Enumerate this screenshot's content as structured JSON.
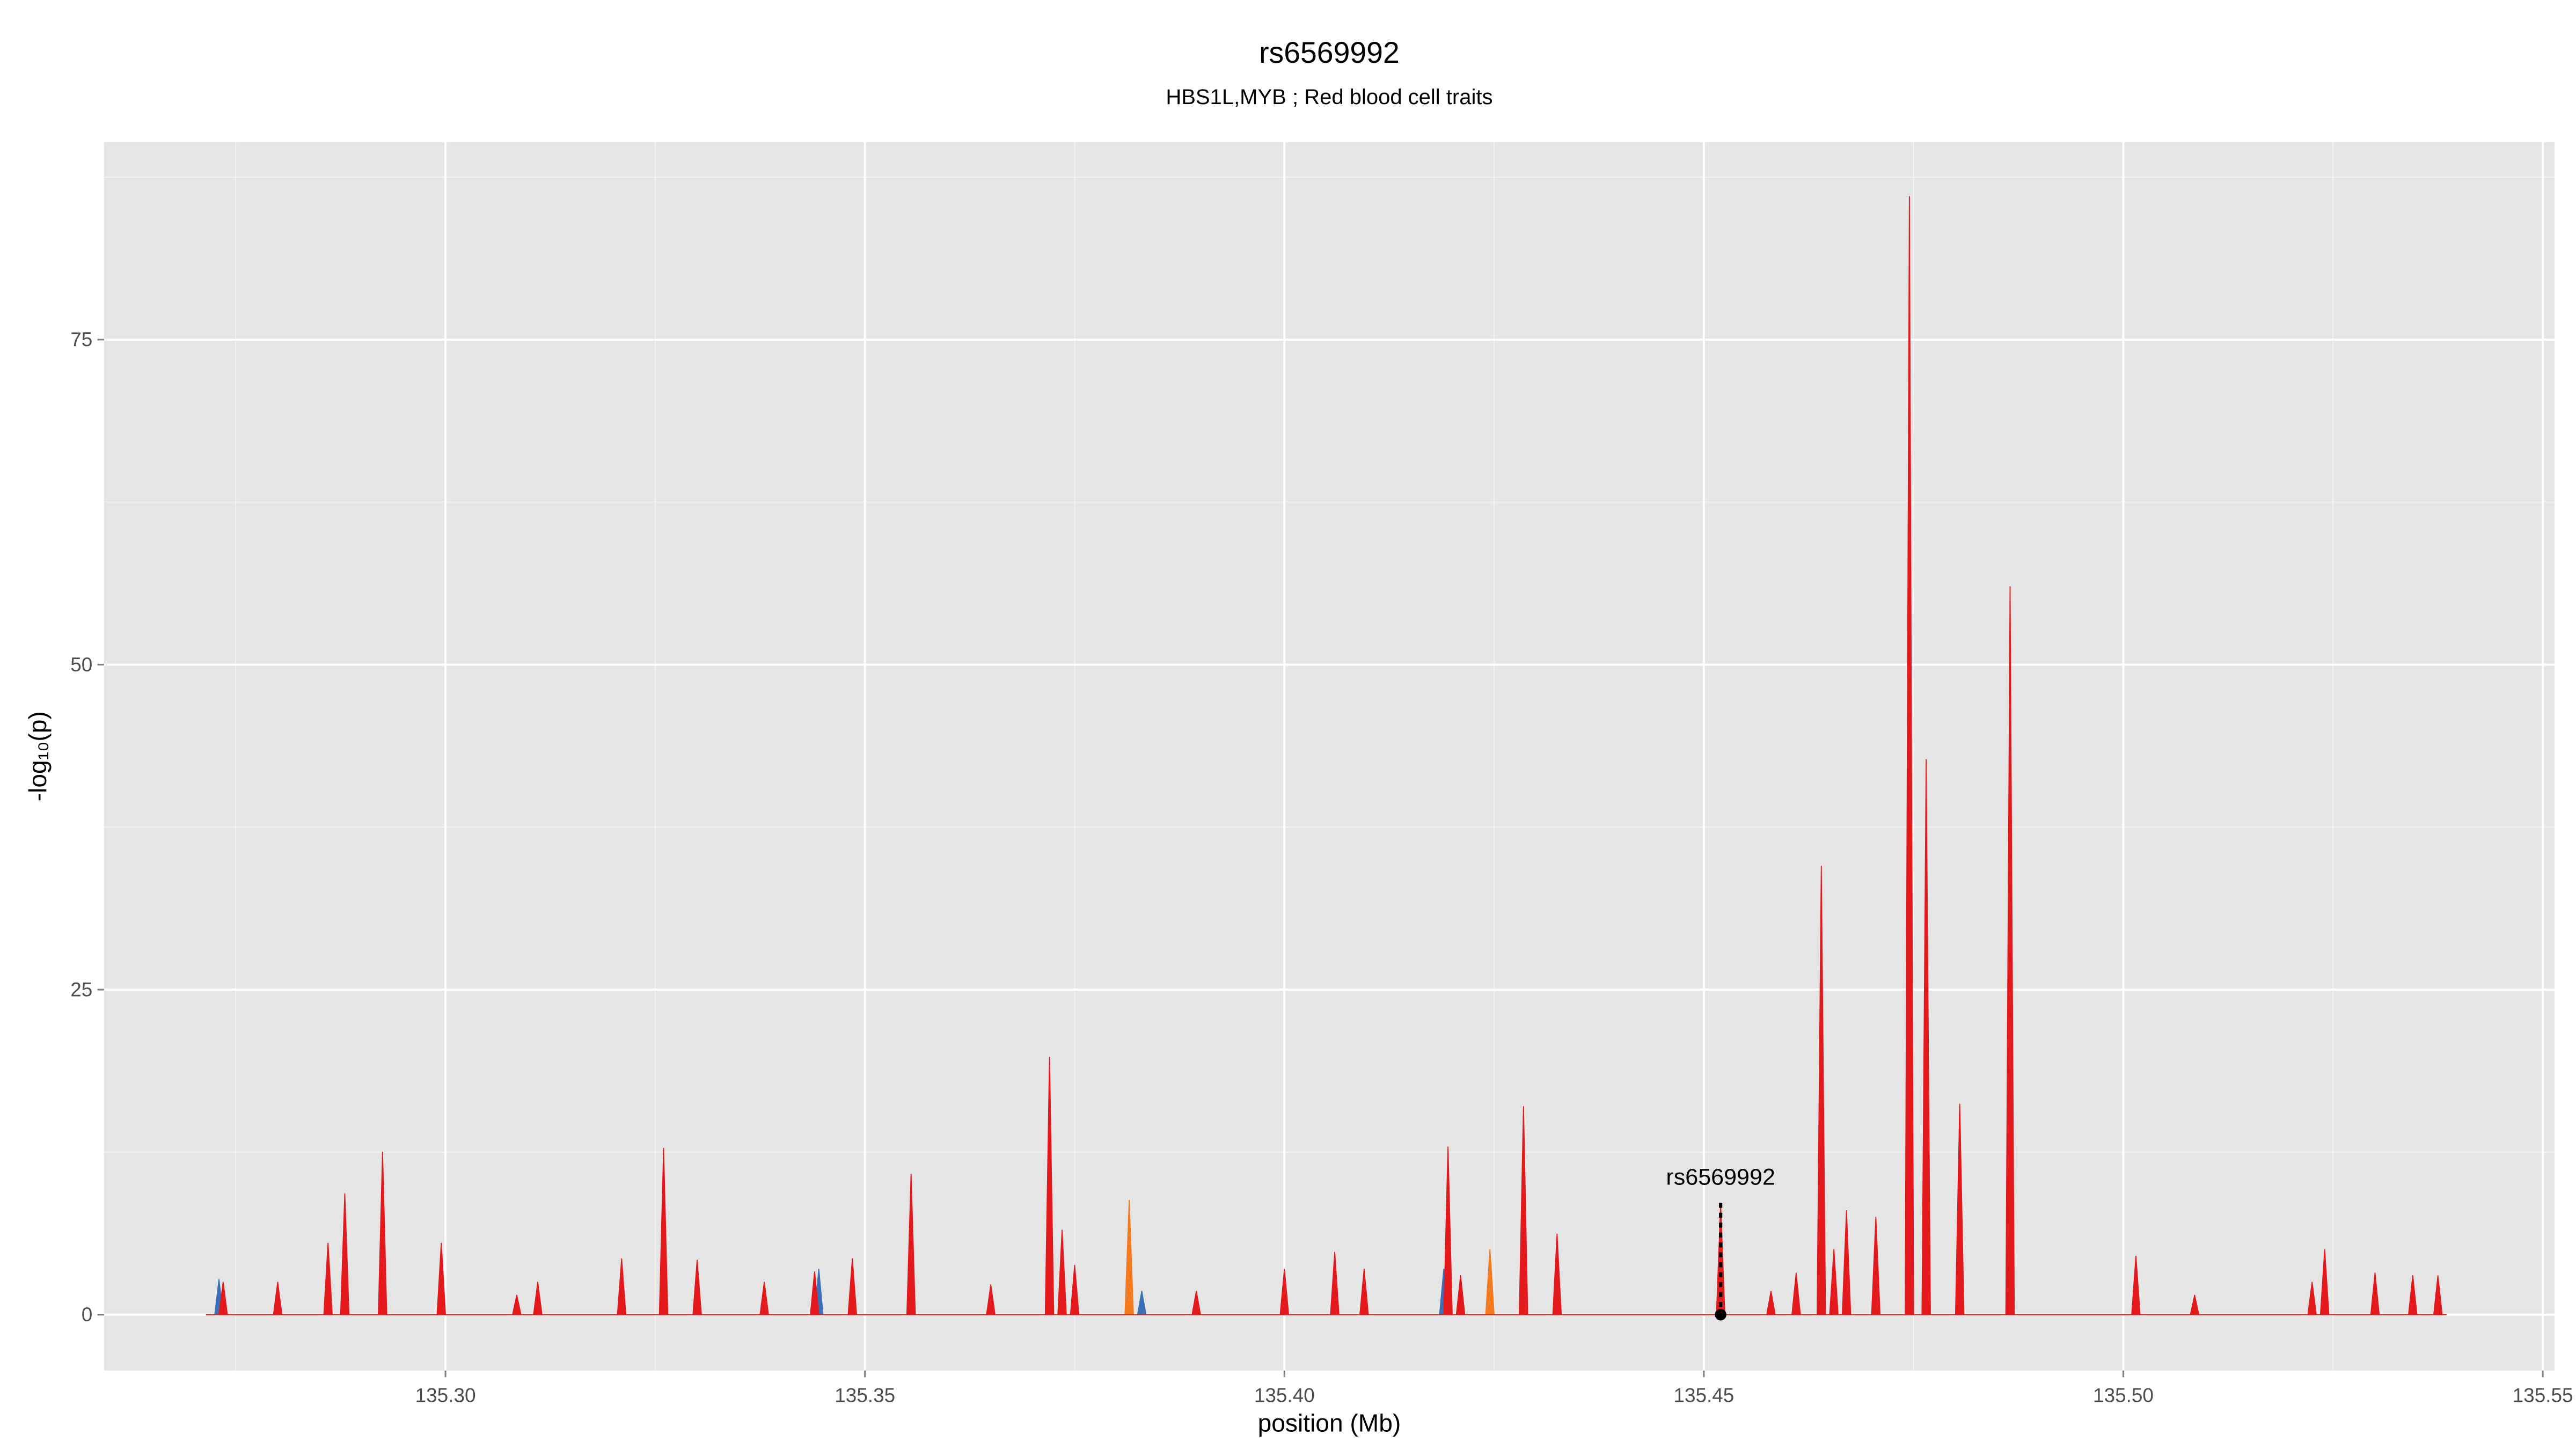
{
  "chart_data": {
    "type": "area",
    "title": "rs6569992",
    "subtitle": "HBS1L,MYB ; Red blood cell traits",
    "xlabel": "position (Mb)",
    "ylabel": "-log₁₀(p)",
    "xlim": [
      135.2593,
      135.5514
    ],
    "ylim": [
      -4.3,
      90.2
    ],
    "xticks": [
      {
        "value": 135.3,
        "label": "135.30"
      },
      135.35,
      {
        "value": 135.4,
        "label": "135.40"
      },
      135.45,
      {
        "value": 135.5,
        "label": "135.50"
      },
      135.55
    ],
    "yticks": [
      0,
      25,
      50,
      75
    ],
    "grid": true,
    "series": [
      {
        "color": "#3b6fb6",
        "x": [
          135.2715,
          135.2725,
          135.273,
          135.2735,
          135.344,
          135.3445,
          135.345,
          135.3825,
          135.383,
          135.3835,
          135.4185,
          135.419,
          135.4195,
          135.5385
        ],
        "values": [
          0,
          0,
          2.7,
          0,
          0,
          3.5,
          0,
          0,
          1.8,
          0,
          0,
          3.5,
          0,
          0
        ]
      },
      {
        "color": "#f47a1f",
        "x": [
          135.2715,
          135.381,
          135.3815,
          135.382,
          135.424,
          135.4245,
          135.425,
          135.486,
          135.4865,
          135.487,
          135.5385
        ],
        "values": [
          0,
          0,
          8.8,
          0,
          0,
          5,
          0,
          0,
          20,
          0,
          0
        ]
      },
      {
        "color": "#e3191c",
        "x": [
          135.2715,
          135.273,
          135.2735,
          135.274,
          135.2795,
          135.28,
          135.2805,
          135.2855,
          135.286,
          135.2865,
          135.2875,
          135.288,
          135.2885,
          135.292,
          135.2925,
          135.293,
          135.299,
          135.2995,
          135.3,
          135.308,
          135.3085,
          135.309,
          135.3105,
          135.311,
          135.3115,
          135.3205,
          135.321,
          135.3215,
          135.3255,
          135.326,
          135.3265,
          135.3295,
          135.33,
          135.3305,
          135.3375,
          135.338,
          135.3385,
          135.3435,
          135.344,
          135.3445,
          135.348,
          135.3485,
          135.349,
          135.355,
          135.3555,
          135.356,
          135.3645,
          135.365,
          135.3655,
          135.3715,
          135.372,
          135.3725,
          135.373,
          135.3735,
          135.374,
          135.3745,
          135.375,
          135.3755,
          135.389,
          135.3895,
          135.39,
          135.3995,
          135.4,
          135.4005,
          135.4055,
          135.406,
          135.4065,
          135.409,
          135.4095,
          135.41,
          135.419,
          135.4195,
          135.42,
          135.4205,
          135.421,
          135.4215,
          135.428,
          135.4285,
          135.429,
          135.432,
          135.4325,
          135.433,
          135.4515,
          135.452,
          135.4525,
          135.4575,
          135.458,
          135.4585,
          135.4605,
          135.461,
          135.4615,
          135.4635,
          135.464,
          135.4645,
          135.465,
          135.4655,
          135.466,
          135.4665,
          135.467,
          135.4675,
          135.47,
          135.4705,
          135.471,
          135.474,
          135.4745,
          135.475,
          135.476,
          135.4765,
          135.477,
          135.48,
          135.4805,
          135.481,
          135.486,
          135.4865,
          135.487,
          135.501,
          135.5015,
          135.502,
          135.508,
          135.5085,
          135.509,
          135.522,
          135.5225,
          135.523,
          135.5235,
          135.524,
          135.5245,
          135.5295,
          135.53,
          135.5305,
          135.534,
          135.5345,
          135.535,
          135.537,
          135.5375,
          135.538,
          135.5385
        ],
        "values": [
          0,
          0,
          2.5,
          0,
          0,
          2.5,
          0,
          0,
          5.5,
          0,
          0,
          9.3,
          0,
          0,
          12.5,
          0,
          0,
          5.5,
          0,
          0,
          1.5,
          0,
          0,
          2.5,
          0,
          0,
          4.3,
          0,
          0,
          12.8,
          0,
          0,
          4.2,
          0,
          0,
          2.5,
          0,
          0,
          3.3,
          0,
          0,
          4.3,
          0,
          0,
          10.8,
          0,
          0,
          2.3,
          0,
          0,
          19.8,
          0,
          0,
          6.5,
          0,
          0,
          3.8,
          0,
          0,
          1.8,
          0,
          0,
          3.5,
          0,
          0,
          4.8,
          0,
          0,
          3.5,
          0,
          0,
          12.9,
          0,
          0,
          3,
          0,
          0,
          16,
          0,
          0,
          6.2,
          0,
          0,
          8.5,
          0,
          0,
          1.8,
          0,
          0,
          3.2,
          0,
          0,
          34.5,
          0,
          0,
          5,
          0,
          0,
          8,
          0,
          0,
          7.5,
          0,
          0,
          86,
          0,
          0,
          42.7,
          0,
          0,
          16.2,
          0,
          0,
          56,
          0,
          0,
          4.5,
          0,
          0,
          1.5,
          0,
          0,
          2.5,
          0,
          0,
          5,
          0,
          0,
          3.2,
          0,
          0,
          3,
          0,
          0,
          3,
          0,
          0
        ]
      }
    ],
    "highlight": {
      "label": "rs6569992",
      "x": 135.452,
      "y": 8.6
    }
  }
}
